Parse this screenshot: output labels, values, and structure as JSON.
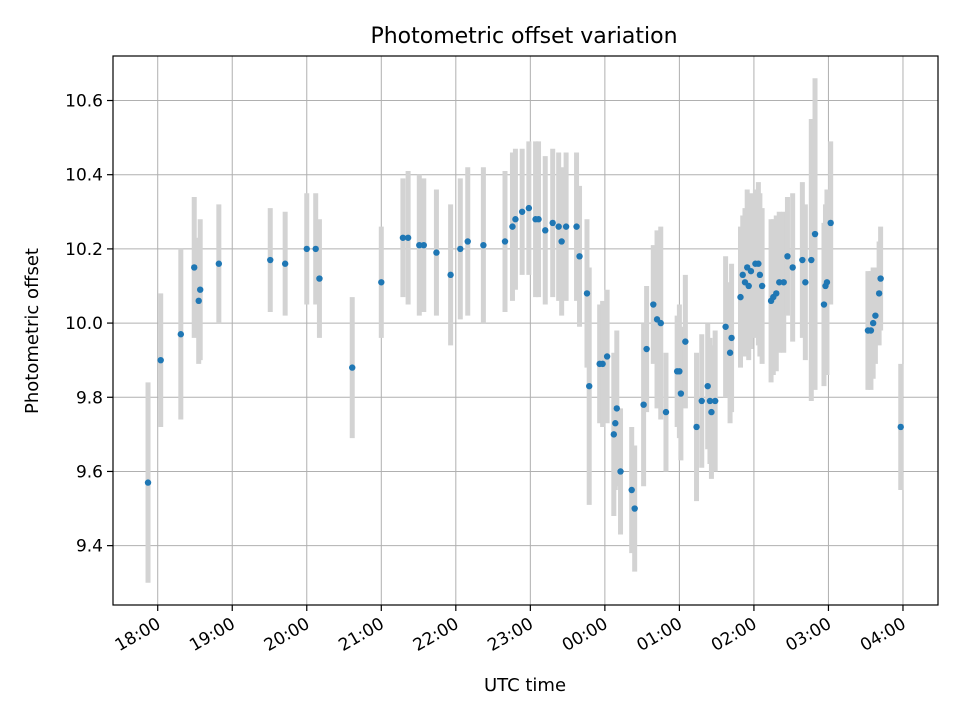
{
  "chart_data": {
    "type": "scatter",
    "title": "Photometric offset variation",
    "xlabel": "UTC time",
    "ylabel": "Photometric offset",
    "x_tick_labels": [
      "18:00",
      "19:00",
      "20:00",
      "21:00",
      "22:00",
      "23:00",
      "00:00",
      "01:00",
      "02:00",
      "03:00",
      "04:00"
    ],
    "y_tick_labels": [
      "9.4",
      "9.6",
      "9.8",
      "10.0",
      "10.2",
      "10.4",
      "10.6"
    ],
    "x_ticks_hours": [
      0,
      1,
      2,
      3,
      4,
      5,
      6,
      7,
      8,
      9,
      10
    ],
    "y_ticks": [
      9.4,
      9.6,
      9.8,
      10.0,
      10.2,
      10.4,
      10.6
    ],
    "xlim_hours": [
      -0.6,
      10.47
    ],
    "ylim": [
      9.24,
      10.72
    ],
    "grid": true,
    "colors": {
      "point": "#1f77b4",
      "errorbar": "#d3d3d3",
      "grid": "#b0b0b0"
    },
    "points": [
      {
        "t": -0.13,
        "y": 9.57,
        "err": 0.27
      },
      {
        "t": 0.04,
        "y": 9.9,
        "err": 0.18
      },
      {
        "t": 0.31,
        "y": 9.97,
        "err": 0.23
      },
      {
        "t": 0.49,
        "y": 10.15,
        "err": 0.19
      },
      {
        "t": 0.55,
        "y": 10.06,
        "err": 0.17
      },
      {
        "t": 0.57,
        "y": 10.09,
        "err": 0.19
      },
      {
        "t": 0.82,
        "y": 10.16,
        "err": 0.16
      },
      {
        "t": 1.51,
        "y": 10.17,
        "err": 0.14
      },
      {
        "t": 1.71,
        "y": 10.16,
        "err": 0.14
      },
      {
        "t": 2.0,
        "y": 10.2,
        "err": 0.15
      },
      {
        "t": 2.12,
        "y": 10.2,
        "err": 0.15
      },
      {
        "t": 2.17,
        "y": 10.12,
        "err": 0.16
      },
      {
        "t": 2.61,
        "y": 9.88,
        "err": 0.19
      },
      {
        "t": 3.0,
        "y": 10.11,
        "err": 0.15
      },
      {
        "t": 3.29,
        "y": 10.23,
        "err": 0.16
      },
      {
        "t": 3.36,
        "y": 10.23,
        "err": 0.18
      },
      {
        "t": 3.51,
        "y": 10.21,
        "err": 0.19
      },
      {
        "t": 3.57,
        "y": 10.21,
        "err": 0.18
      },
      {
        "t": 3.74,
        "y": 10.19,
        "err": 0.17
      },
      {
        "t": 3.93,
        "y": 10.13,
        "err": 0.19
      },
      {
        "t": 4.06,
        "y": 10.2,
        "err": 0.19
      },
      {
        "t": 4.16,
        "y": 10.22,
        "err": 0.2
      },
      {
        "t": 4.37,
        "y": 10.21,
        "err": 0.21
      },
      {
        "t": 4.66,
        "y": 10.22,
        "err": 0.19
      },
      {
        "t": 4.76,
        "y": 10.26,
        "err": 0.2
      },
      {
        "t": 4.8,
        "y": 10.28,
        "err": 0.19
      },
      {
        "t": 4.89,
        "y": 10.3,
        "err": 0.17
      },
      {
        "t": 4.98,
        "y": 10.31,
        "err": 0.18
      },
      {
        "t": 5.07,
        "y": 10.28,
        "err": 0.21
      },
      {
        "t": 5.11,
        "y": 10.28,
        "err": 0.21
      },
      {
        "t": 5.2,
        "y": 10.25,
        "err": 0.2
      },
      {
        "t": 5.3,
        "y": 10.27,
        "err": 0.2
      },
      {
        "t": 5.38,
        "y": 10.26,
        "err": 0.2
      },
      {
        "t": 5.42,
        "y": 10.22,
        "err": 0.2
      },
      {
        "t": 5.48,
        "y": 10.26,
        "err": 0.2
      },
      {
        "t": 5.62,
        "y": 10.26,
        "err": 0.2
      },
      {
        "t": 5.66,
        "y": 10.18,
        "err": 0.19
      },
      {
        "t": 5.76,
        "y": 10.08,
        "err": 0.2
      },
      {
        "t": 5.79,
        "y": 9.83,
        "err": 0.32
      },
      {
        "t": 5.93,
        "y": 9.89,
        "err": 0.16
      },
      {
        "t": 5.97,
        "y": 9.89,
        "err": 0.17
      },
      {
        "t": 6.03,
        "y": 9.91,
        "err": 0.18
      },
      {
        "t": 6.12,
        "y": 9.7,
        "err": 0.22
      },
      {
        "t": 6.14,
        "y": 9.73,
        "err": 0.18
      },
      {
        "t": 6.16,
        "y": 9.77,
        "err": 0.21
      },
      {
        "t": 6.21,
        "y": 9.6,
        "err": 0.17
      },
      {
        "t": 6.36,
        "y": 9.55,
        "err": 0.17
      },
      {
        "t": 6.4,
        "y": 9.5,
        "err": 0.17
      },
      {
        "t": 6.52,
        "y": 9.78,
        "err": 0.22
      },
      {
        "t": 6.56,
        "y": 9.93,
        "err": 0.17
      },
      {
        "t": 6.65,
        "y": 10.05,
        "err": 0.16
      },
      {
        "t": 6.7,
        "y": 10.01,
        "err": 0.24
      },
      {
        "t": 6.75,
        "y": 10.0,
        "err": 0.26
      },
      {
        "t": 6.82,
        "y": 9.76,
        "err": 0.16
      },
      {
        "t": 6.97,
        "y": 9.87,
        "err": 0.15
      },
      {
        "t": 7.0,
        "y": 9.87,
        "err": 0.18
      },
      {
        "t": 7.02,
        "y": 9.81,
        "err": 0.18
      },
      {
        "t": 7.08,
        "y": 9.95,
        "err": 0.18
      },
      {
        "t": 7.23,
        "y": 9.72,
        "err": 0.2
      },
      {
        "t": 7.3,
        "y": 9.79,
        "err": 0.18
      },
      {
        "t": 7.38,
        "y": 9.83,
        "err": 0.17
      },
      {
        "t": 7.41,
        "y": 9.79,
        "err": 0.17
      },
      {
        "t": 7.43,
        "y": 9.76,
        "err": 0.18
      },
      {
        "t": 7.48,
        "y": 9.79,
        "err": 0.19
      },
      {
        "t": 7.62,
        "y": 9.99,
        "err": 0.19
      },
      {
        "t": 7.68,
        "y": 9.92,
        "err": 0.19
      },
      {
        "t": 7.7,
        "y": 9.96,
        "err": 0.2
      },
      {
        "t": 7.82,
        "y": 10.07,
        "err": 0.19
      },
      {
        "t": 7.85,
        "y": 10.13,
        "err": 0.16
      },
      {
        "t": 7.88,
        "y": 10.11,
        "err": 0.2
      },
      {
        "t": 7.91,
        "y": 10.15,
        "err": 0.21
      },
      {
        "t": 7.93,
        "y": 10.1,
        "err": 0.2
      },
      {
        "t": 7.96,
        "y": 10.14,
        "err": 0.21
      },
      {
        "t": 8.02,
        "y": 10.16,
        "err": 0.2
      },
      {
        "t": 8.06,
        "y": 10.16,
        "err": 0.22
      },
      {
        "t": 8.08,
        "y": 10.13,
        "err": 0.22
      },
      {
        "t": 8.11,
        "y": 10.1,
        "err": 0.21
      },
      {
        "t": 8.23,
        "y": 10.06,
        "err": 0.22
      },
      {
        "t": 8.26,
        "y": 10.07,
        "err": 0.21
      },
      {
        "t": 8.3,
        "y": 10.08,
        "err": 0.21
      },
      {
        "t": 8.34,
        "y": 10.11,
        "err": 0.19
      },
      {
        "t": 8.4,
        "y": 10.11,
        "err": 0.19
      },
      {
        "t": 8.45,
        "y": 10.18,
        "err": 0.16
      },
      {
        "t": 8.52,
        "y": 10.15,
        "err": 0.2
      },
      {
        "t": 8.65,
        "y": 10.17,
        "err": 0.21
      },
      {
        "t": 8.69,
        "y": 10.11,
        "err": 0.21
      },
      {
        "t": 8.77,
        "y": 10.17,
        "err": 0.38
      },
      {
        "t": 8.82,
        "y": 10.24,
        "err": 0.42
      },
      {
        "t": 8.94,
        "y": 10.05,
        "err": 0.22
      },
      {
        "t": 8.96,
        "y": 10.1,
        "err": 0.22
      },
      {
        "t": 8.98,
        "y": 10.11,
        "err": 0.25
      },
      {
        "t": 9.03,
        "y": 10.27,
        "err": 0.22
      },
      {
        "t": 9.53,
        "y": 9.98,
        "err": 0.16
      },
      {
        "t": 9.57,
        "y": 9.98,
        "err": 0.16
      },
      {
        "t": 9.6,
        "y": 10.0,
        "err": 0.15
      },
      {
        "t": 9.63,
        "y": 10.02,
        "err": 0.13
      },
      {
        "t": 9.68,
        "y": 10.08,
        "err": 0.14
      },
      {
        "t": 9.7,
        "y": 10.12,
        "err": 0.14
      },
      {
        "t": 9.97,
        "y": 9.72,
        "err": 0.17
      }
    ]
  }
}
